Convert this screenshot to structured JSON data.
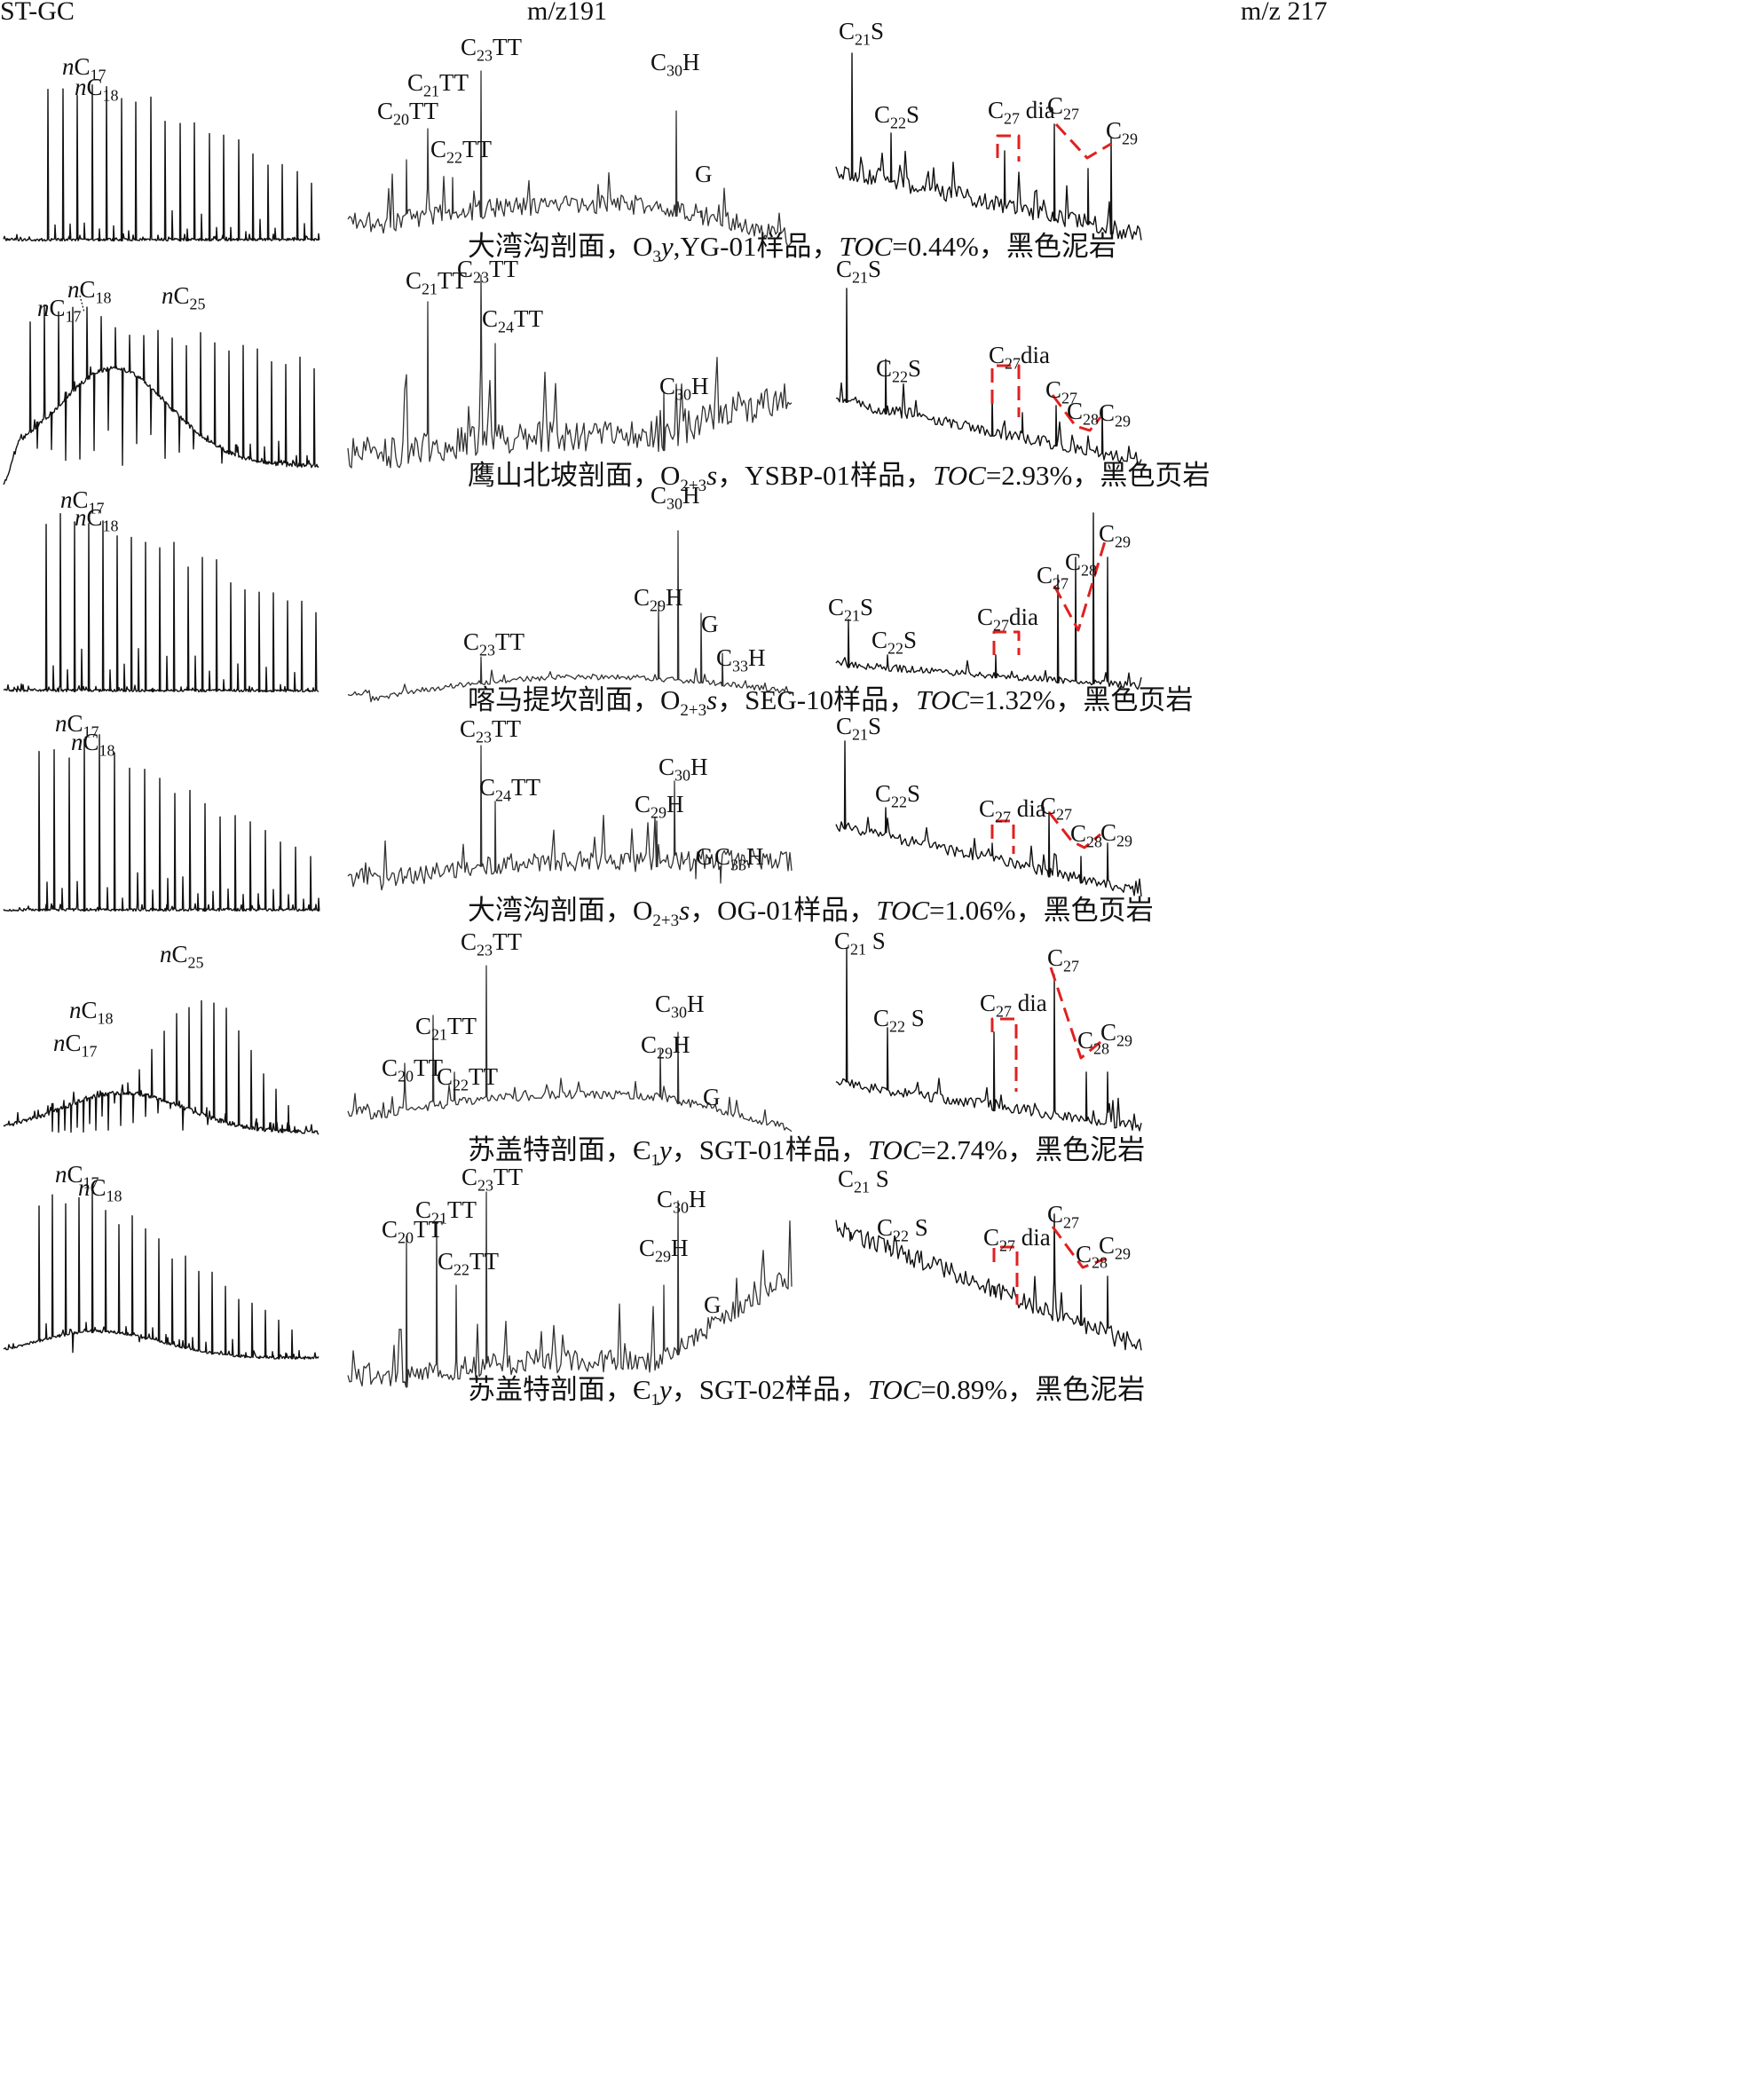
{
  "chart_data": {
    "type": "line",
    "columns": [
      "ST-GC",
      "m/z191",
      "m/z 217"
    ],
    "panels": [
      {
        "caption": "大湾沟剖面，O₃y,YG-01样品，TOC=0.44%，黑色泥岩",
        "gc_labels": [
          "nC17",
          "nC18"
        ],
        "m191_labels": [
          "C20TT",
          "C21TT",
          "C22TT",
          "C23TT",
          "C30H",
          "G"
        ],
        "m217_labels": [
          "C21S",
          "C22S",
          "C27 dia",
          "C27",
          "C29"
        ]
      },
      {
        "caption": "鹰山北坡剖面，O₂₊₃s，YSBP-01样品，TOC=2.93%，黑色页岩",
        "gc_labels": [
          "nC17",
          "nC18",
          "nC25"
        ],
        "m191_labels": [
          "C21TT",
          "C23TT",
          "C24TT",
          "C30H"
        ],
        "m217_labels": [
          "C21S",
          "C22S",
          "C27dia",
          "C27",
          "C28",
          "C29"
        ]
      },
      {
        "caption": "喀马提坎剖面，O₂₊₃s，SEG-10样品，TOC=1.32%，黑色页岩",
        "gc_labels": [
          "nC17",
          "nC18"
        ],
        "m191_labels": [
          "C23TT",
          "C29H",
          "C30H",
          "G",
          "C33H"
        ],
        "m217_labels": [
          "C21S",
          "C22S",
          "C27dia",
          "C27",
          "C28",
          "C29"
        ]
      },
      {
        "caption": "大湾沟剖面，O₂₊₃s，OG-01样品，TOC=1.06%，黑色页岩",
        "gc_labels": [
          "nC17",
          "nC18"
        ],
        "m191_labels": [
          "C23TT",
          "C24TT",
          "C29H",
          "C30H",
          "G",
          "C33H"
        ],
        "m217_labels": [
          "C21S",
          "C22S",
          "C27 dia",
          "C27",
          "C28",
          "C29"
        ]
      },
      {
        "caption": "苏盖特剖面，Є₁y，SGT-01样品，TOC=2.74%，黑色泥岩",
        "gc_labels": [
          "nC17",
          "nC18",
          "nC25"
        ],
        "m191_labels": [
          "C20TT",
          "C21TT",
          "C22TT",
          "C23TT",
          "C29H",
          "C30H",
          "G"
        ],
        "m217_labels": [
          "C21 S",
          "C22 S",
          "C27 dia",
          "C27",
          "C28",
          "C29"
        ]
      },
      {
        "caption": "苏盖特剖面，Є₁y，SGT-02样品，TOC=0.89%，黑色泥岩",
        "gc_labels": [
          "nC17",
          "nC18"
        ],
        "m191_labels": [
          "C20TT",
          "C21TT",
          "C22TT",
          "C23TT",
          "C29H",
          "C30H",
          "G"
        ],
        "m217_labels": [
          "C21 S",
          "C22 S",
          "C27 dia",
          "C27",
          "C28",
          "C29"
        ]
      }
    ]
  },
  "header": {
    "col1": "ST-GC",
    "col2": "m/z191",
    "col3": "m/z 217"
  },
  "captions": [
    {
      "loc": "大湾沟剖面，O",
      "sub": "3",
      "fm": "y",
      "rest": ",YG-01样品，",
      "toc": "TOC",
      "val": "=0.44%，黑色泥岩"
    },
    {
      "loc": "鹰山北坡剖面，O",
      "sub": "2+3",
      "fm": "s",
      "rest": "，YSBP-01样品，",
      "toc": "TOC",
      "val": "=2.93%，黑色页岩"
    },
    {
      "loc": "喀马提坎剖面，O",
      "sub": "2+3",
      "fm": "s",
      "rest": "，SEG-10样品，",
      "toc": "TOC",
      "val": "=1.32%，黑色页岩"
    },
    {
      "loc": "大湾沟剖面，O",
      "sub": "2+3",
      "fm": "s",
      "rest": "，OG-01样品，",
      "toc": "TOC",
      "val": "=1.06%，黑色页岩"
    },
    {
      "loc": "苏盖特剖面，Є",
      "sub": "1",
      "fm": "y",
      "rest": "，SGT-01样品，",
      "toc": "TOC",
      "val": "=2.74%，黑色泥岩"
    },
    {
      "loc": "苏盖特剖面，Є",
      "sub": "1",
      "fm": "y",
      "rest": "，SGT-02样品，",
      "toc": "TOC",
      "val": "=0.89%，黑色泥岩"
    }
  ],
  "colors": {
    "trace": "#111111",
    "dash": "#e02020"
  }
}
